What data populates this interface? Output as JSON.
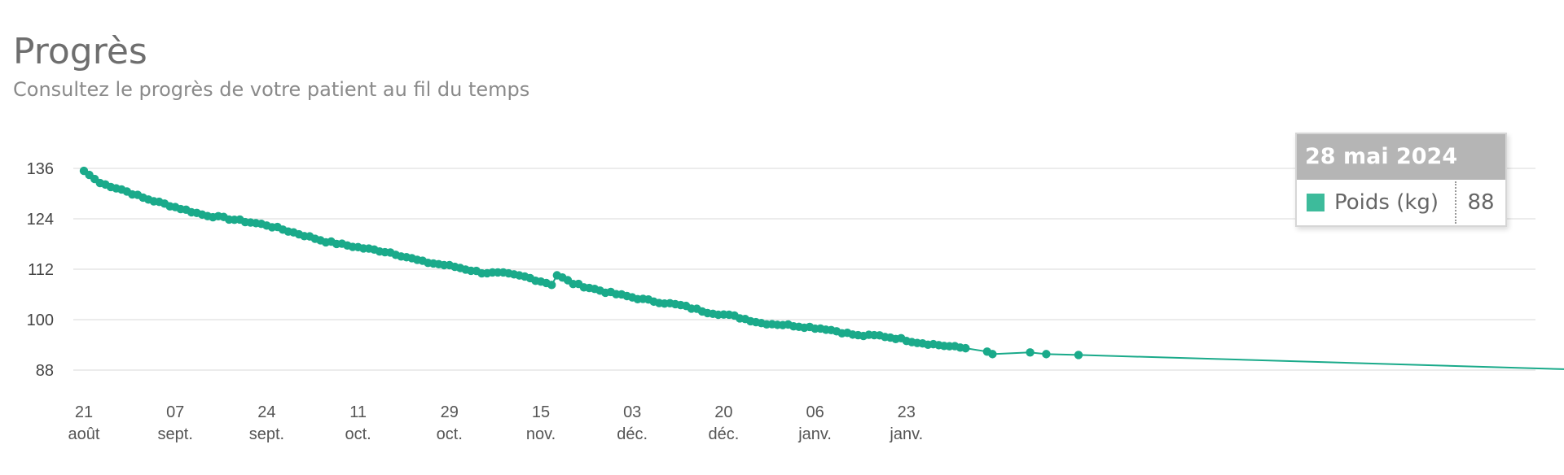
{
  "header": {
    "title": "Progrès",
    "subtitle": "Consultez le progrès de votre patient au fil du temps"
  },
  "tooltip": {
    "date": "28 mai 2024",
    "label": "Poids (kg)",
    "value": "88"
  },
  "colors": {
    "series": "#1aaa8a",
    "swatch": "#3dbb9b",
    "grid": "#e6e6e6",
    "crosshair": "#999999"
  },
  "chart_data": {
    "type": "line",
    "title": "",
    "xlabel": "",
    "ylabel": "",
    "ylim": [
      86,
      138
    ],
    "yticks": [
      136,
      124,
      112,
      100,
      88
    ],
    "grid": true,
    "xticks": [
      {
        "day": "21",
        "month": "août"
      },
      {
        "day": "07",
        "month": "sept."
      },
      {
        "day": "24",
        "month": "sept."
      },
      {
        "day": "11",
        "month": "oct."
      },
      {
        "day": "29",
        "month": "oct."
      },
      {
        "day": "15",
        "month": "nov."
      },
      {
        "day": "03",
        "month": "déc."
      },
      {
        "day": "20",
        "month": "déc."
      },
      {
        "day": "06",
        "month": "janv."
      },
      {
        "day": "23",
        "month": "janv."
      }
    ],
    "series": [
      {
        "name": "Poids (kg)",
        "anchors": [
          [
            "2023-08-21",
            135.4
          ],
          [
            "2023-08-24",
            132.5
          ],
          [
            "2023-08-28",
            131.0
          ],
          [
            "2023-09-01",
            129.0
          ],
          [
            "2023-09-07",
            126.8
          ],
          [
            "2023-09-12",
            125.0
          ],
          [
            "2023-09-18",
            123.8
          ],
          [
            "2023-09-24",
            122.5
          ],
          [
            "2023-09-30",
            120.4
          ],
          [
            "2023-10-05",
            118.6
          ],
          [
            "2023-10-11",
            117.2
          ],
          [
            "2023-10-17",
            116.0
          ],
          [
            "2023-10-23",
            113.8
          ],
          [
            "2023-10-29",
            112.6
          ],
          [
            "2023-11-03",
            111.2
          ],
          [
            "2023-11-07",
            111.0
          ],
          [
            "2023-11-11",
            110.2
          ],
          [
            "2023-11-15",
            108.8
          ],
          [
            "2023-11-16",
            108.4
          ],
          [
            "2023-11-17",
            110.6
          ],
          [
            "2023-11-20",
            108.6
          ],
          [
            "2023-11-26",
            106.6
          ],
          [
            "2023-12-03",
            104.8
          ],
          [
            "2023-12-10",
            103.4
          ],
          [
            "2023-12-15",
            101.8
          ],
          [
            "2023-12-20",
            100.8
          ],
          [
            "2023-12-25",
            99.2
          ],
          [
            "2023-12-31",
            98.6
          ],
          [
            "2024-01-06",
            97.8
          ],
          [
            "2024-01-12",
            96.2
          ],
          [
            "2024-01-16",
            96.2
          ],
          [
            "2024-01-20",
            95.4
          ],
          [
            "2024-01-23",
            94.6
          ],
          [
            "2024-01-28",
            93.8
          ],
          [
            "2024-02-01",
            93.2
          ]
        ],
        "points": [
          [
            "2024-02-05",
            92.4
          ],
          [
            "2024-02-06",
            91.8
          ],
          [
            "2024-02-13",
            92.2
          ],
          [
            "2024-02-16",
            91.8
          ],
          [
            "2024-02-22",
            91.6
          ],
          [
            "2024-05-28",
            88.0
          ]
        ]
      }
    ],
    "highlight": {
      "x": "2024-05-28",
      "y": 88
    }
  }
}
